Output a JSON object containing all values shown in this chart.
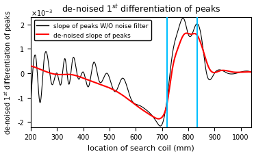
{
  "title": "de-noised 1$^{st}$ differentiation of peaks",
  "xlabel": "location of search coil (mm)",
  "ylabel": "de-noised 1$^{st}$ differentiation of peaks",
  "xlim": [
    200,
    1040
  ],
  "ylim": [
    -0.0022,
    0.0023
  ],
  "yticks": [
    -0.002,
    -0.001,
    0,
    0.001,
    0.002
  ],
  "xticks": [
    200,
    300,
    400,
    500,
    600,
    700,
    800,
    900,
    1000
  ],
  "vlines": [
    720,
    835
  ],
  "vline_color": "#00BFFF",
  "legend": [
    "slope of peaks W/O noise filter",
    "de-noised slope of peaks"
  ],
  "legend_colors": [
    "black",
    "red"
  ],
  "figsize": [
    3.71,
    2.26
  ],
  "dpi": 100
}
